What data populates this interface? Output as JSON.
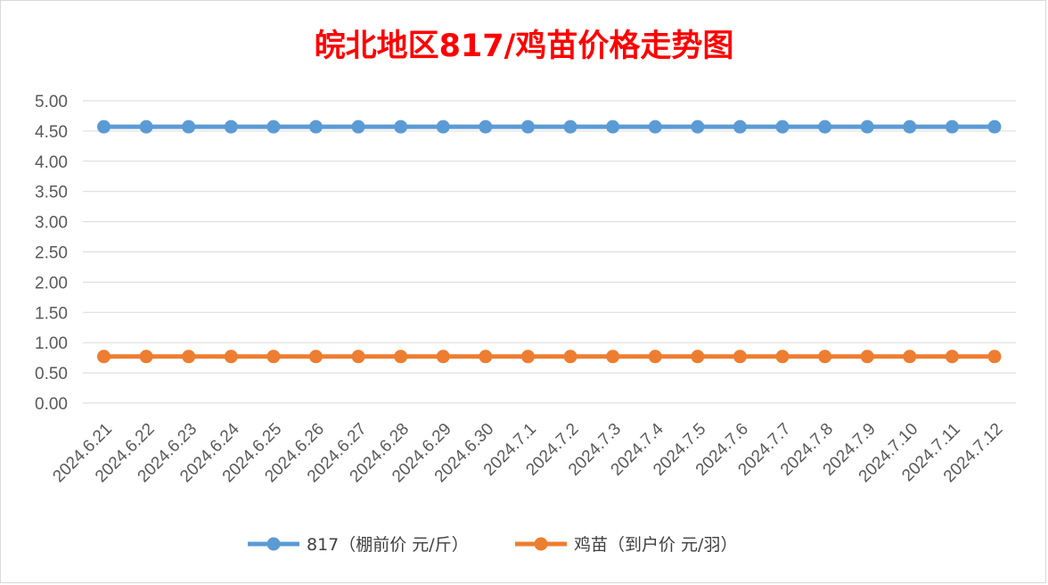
{
  "chart_data": {
    "type": "line",
    "title": "皖北地区817/鸡苗价格走势图",
    "categories": [
      "2024.6.21",
      "2024.6.22",
      "2024.6.23",
      "2024.6.24",
      "2024.6.25",
      "2024.6.26",
      "2024.6.27",
      "2024.6.28",
      "2024.6.29",
      "2024.6.30",
      "2024.7.1",
      "2024.7.2",
      "2024.7.3",
      "2024.7.4",
      "2024.7.5",
      "2024.7.6",
      "2024.7.7",
      "2024.7.8",
      "2024.7.9",
      "2024.7.10",
      "2024.7.11",
      "2024.7.12"
    ],
    "series": [
      {
        "name": "817（棚前价 元/斤）",
        "color": "#5b9bd5",
        "values": [
          4.57,
          4.57,
          4.57,
          4.57,
          4.57,
          4.57,
          4.57,
          4.57,
          4.57,
          4.57,
          4.57,
          4.57,
          4.57,
          4.57,
          4.57,
          4.57,
          4.57,
          4.57,
          4.57,
          4.57,
          4.57,
          4.57
        ]
      },
      {
        "name": "鸡苗（到户价 元/羽）",
        "color": "#ed7d31",
        "values": [
          0.77,
          0.77,
          0.77,
          0.77,
          0.77,
          0.77,
          0.77,
          0.77,
          0.77,
          0.77,
          0.77,
          0.77,
          0.77,
          0.77,
          0.77,
          0.77,
          0.77,
          0.77,
          0.77,
          0.77,
          0.77,
          0.77
        ]
      }
    ],
    "ylim": [
      0,
      5
    ],
    "yticks": [
      "0.00",
      "0.50",
      "1.00",
      "1.50",
      "2.00",
      "2.50",
      "3.00",
      "3.50",
      "4.00",
      "4.50",
      "5.00"
    ],
    "grid": true,
    "legend": "bottom"
  },
  "colors": {
    "title": "#ff0000",
    "grid": "#d9d9d9",
    "tick_text": "#595959"
  }
}
